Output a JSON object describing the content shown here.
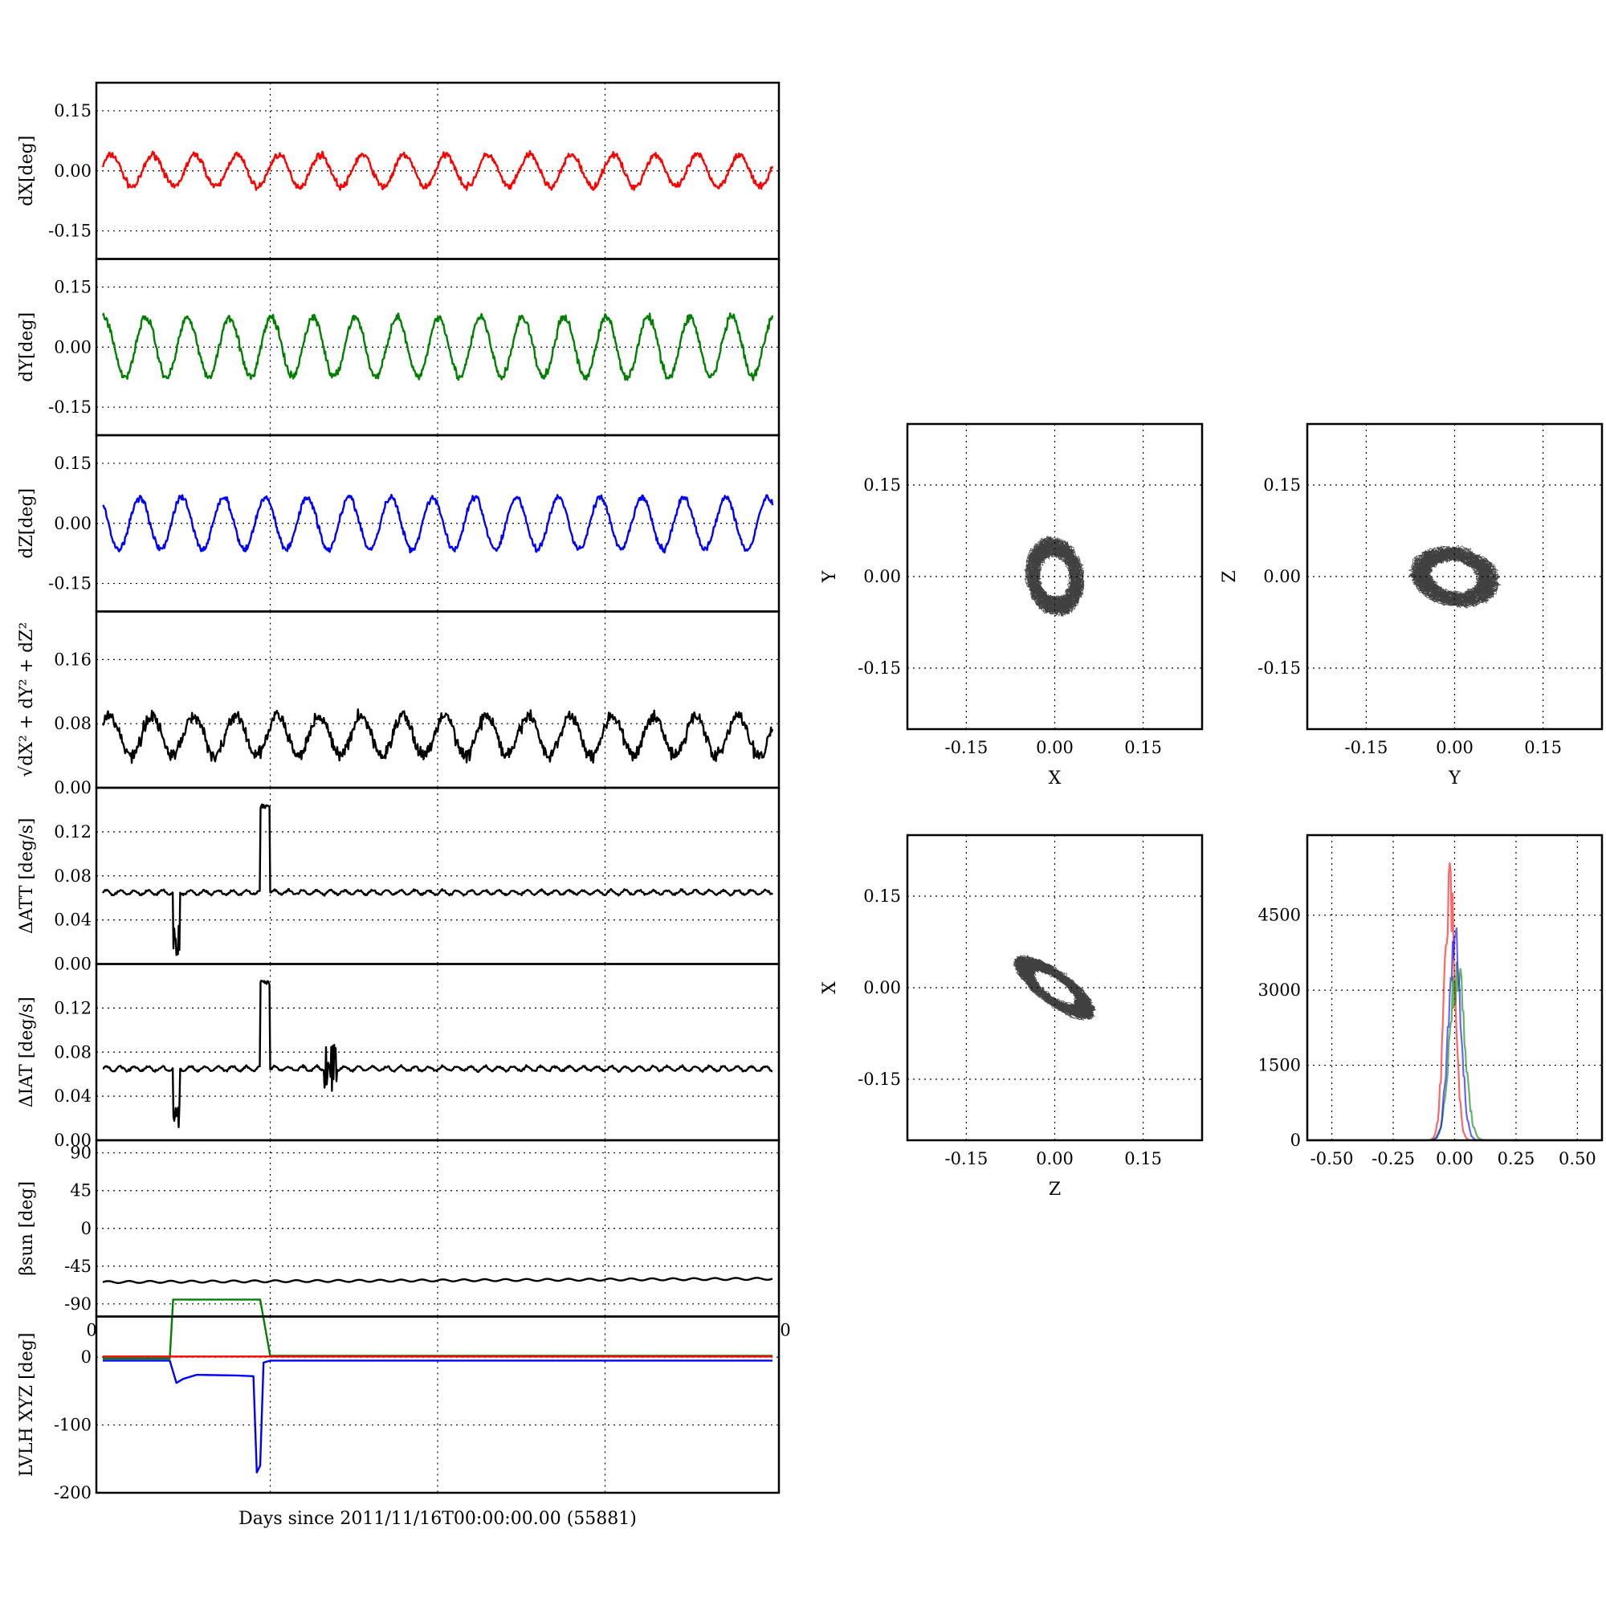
{
  "x_axis_label": "Days since 2011/11/16T00:00:00.00 (55881)",
  "colors": {
    "x": "#ff0000",
    "y": "#008000",
    "z": "#0000ff",
    "k": "#000000"
  },
  "chart_data": [
    {
      "type": "line",
      "ylabel": "dX[deg]",
      "ylim": [
        -0.22,
        0.22
      ],
      "yticks": [
        "0.15",
        "0.00",
        "-0.15"
      ],
      "ytick_values": [
        0.15,
        0.0,
        -0.15
      ],
      "series": [
        {
          "color": "#ff0000",
          "amplitude": 0.04,
          "cycles": 16,
          "phase": 0.3,
          "noise": 0.012
        }
      ]
    },
    {
      "type": "line",
      "ylabel": "dY[deg]",
      "ylim": [
        -0.22,
        0.22
      ],
      "yticks": [
        "0.15",
        "0.00",
        "-0.15"
      ],
      "ytick_values": [
        0.15,
        0.0,
        -0.15
      ],
      "series": [
        {
          "color": "#008000",
          "amplitude": 0.075,
          "cycles": 16,
          "phase": 1.4,
          "noise": 0.015
        }
      ]
    },
    {
      "type": "line",
      "ylabel": "dZ[deg]",
      "ylim": [
        -0.22,
        0.22
      ],
      "yticks": [
        "0.15",
        "0.00",
        "-0.15"
      ],
      "ytick_values": [
        0.15,
        0.0,
        -0.15
      ],
      "series": [
        {
          "color": "#0000ff",
          "amplitude": 0.065,
          "cycles": 16,
          "phase": 2.3,
          "noise": 0.012
        }
      ]
    },
    {
      "type": "line",
      "ylabel": "√dX² + dY² + dZ²",
      "ylim": [
        0.0,
        0.22
      ],
      "yticks": [
        "0.16",
        "0.08",
        "0.00"
      ],
      "ytick_values": [
        0.16,
        0.08,
        0.0
      ],
      "series": [
        {
          "color": "#000000",
          "base": 0.065,
          "amplitude": 0.025,
          "cycles": 16,
          "noise": 0.012
        }
      ]
    },
    {
      "type": "line",
      "ylabel": "ΔATT [deg/s]",
      "ylim": [
        0.0,
        0.16
      ],
      "yticks": [
        "0.12",
        "0.08",
        "0.04",
        "0.00"
      ],
      "ytick_values": [
        0.12,
        0.08,
        0.04,
        0.0
      ],
      "series": [
        {
          "color": "#000000",
          "base": 0.065,
          "dip_at": [
            0.105,
            0.115
          ],
          "spike_at": [
            0.235,
            0.25
          ],
          "spike_value": 0.145
        }
      ]
    },
    {
      "type": "line",
      "ylabel": "ΔIAT [deg/s]",
      "ylim": [
        0.0,
        0.16
      ],
      "yticks": [
        "0.12",
        "0.08",
        "0.04",
        "0.00"
      ],
      "ytick_values": [
        0.12,
        0.08,
        0.04,
        0.0
      ],
      "series": [
        {
          "color": "#000000",
          "base": 0.065,
          "dip_at": [
            0.105,
            0.115
          ],
          "spike_at": [
            0.235,
            0.25
          ],
          "spike_value": 0.145,
          "burst_at": [
            0.33,
            0.35
          ]
        }
      ]
    },
    {
      "type": "line",
      "ylabel": "βsun [deg]",
      "ylim": [
        -105,
        105
      ],
      "yticks": [
        "90",
        "45",
        "0",
        "-45",
        "-90"
      ],
      "ytick_values": [
        90,
        45,
        0,
        -45,
        -90
      ],
      "series": [
        {
          "color": "#000000",
          "base": -64,
          "end": -60,
          "amplitude": 1.2,
          "cycles": 32
        }
      ]
    },
    {
      "type": "line",
      "ylabel": "LVLH XYZ [deg]",
      "ylim": [
        -200,
        60
      ],
      "yticks": [
        "0",
        "-100",
        "-200"
      ],
      "ytick_values": [
        0,
        -100,
        -200
      ],
      "corner_ticks": [
        "0",
        "0"
      ],
      "series": [
        {
          "color": "#008000",
          "segments": [
            [
              0.0,
              -2
            ],
            [
              0.1,
              -2
            ],
            [
              0.105,
              85
            ],
            [
              0.235,
              85
            ],
            [
              0.25,
              2
            ],
            [
              1.0,
              2
            ]
          ]
        },
        {
          "color": "#ff0000",
          "segments": [
            [
              0.0,
              1
            ],
            [
              1.0,
              1
            ]
          ]
        },
        {
          "color": "#0000ff",
          "segments": [
            [
              0.0,
              -5
            ],
            [
              0.1,
              -5
            ],
            [
              0.11,
              -38
            ],
            [
              0.12,
              -32
            ],
            [
              0.14,
              -26
            ],
            [
              0.2,
              -27
            ],
            [
              0.225,
              -28
            ],
            [
              0.23,
              -170
            ],
            [
              0.235,
              -160
            ],
            [
              0.24,
              -8
            ],
            [
              0.25,
              -5
            ],
            [
              1.0,
              -5
            ]
          ]
        }
      ]
    },
    {
      "type": "scatter",
      "xlabel": "X",
      "ylabel": "Y",
      "xlim": [
        -0.25,
        0.25
      ],
      "ylim": [
        -0.25,
        0.25
      ],
      "ticks": [
        "-0.15",
        "0.00",
        "0.15"
      ],
      "tick_values": [
        -0.15,
        0.0,
        0.15
      ],
      "ring": {
        "rx": 0.045,
        "ry": 0.06,
        "tilt": 12
      }
    },
    {
      "type": "scatter",
      "xlabel": "Y",
      "ylabel": "Z",
      "xlim": [
        -0.25,
        0.25
      ],
      "ylim": [
        -0.25,
        0.25
      ],
      "ticks": [
        "-0.15",
        "0.00",
        "0.15"
      ],
      "tick_values": [
        -0.15,
        0.0,
        0.15
      ],
      "ring": {
        "rx": 0.07,
        "ry": 0.045,
        "tilt": -10
      }
    },
    {
      "type": "scatter",
      "xlabel": "Z",
      "ylabel": "X",
      "xlim": [
        -0.25,
        0.25
      ],
      "ylim": [
        -0.25,
        0.25
      ],
      "ticks": [
        "-0.15",
        "0.00",
        "0.15"
      ],
      "tick_values": [
        -0.15,
        0.0,
        0.15
      ],
      "ring": {
        "rx": 0.075,
        "ry": 0.025,
        "tilt": -35
      }
    },
    {
      "type": "histogram",
      "xlim": [
        -0.6,
        0.6
      ],
      "ylim": [
        0,
        6100
      ],
      "xticks": [
        "-0.50",
        "-0.25",
        "0.00",
        "0.25",
        "0.50"
      ],
      "xtick_values": [
        -0.5,
        -0.25,
        0.0,
        0.25,
        0.5
      ],
      "yticks": [
        "4500",
        "3000",
        "1500",
        "0"
      ],
      "ytick_values": [
        4500,
        3000,
        1500,
        0
      ],
      "series": [
        {
          "color": "#ff0000",
          "center": -0.02,
          "width": 0.022,
          "peak": 5400
        },
        {
          "color": "#008000",
          "center": 0.01,
          "width": 0.03,
          "peak": 3600
        },
        {
          "color": "#0000ff",
          "center": 0.0,
          "width": 0.025,
          "peak": 4300
        }
      ]
    }
  ]
}
